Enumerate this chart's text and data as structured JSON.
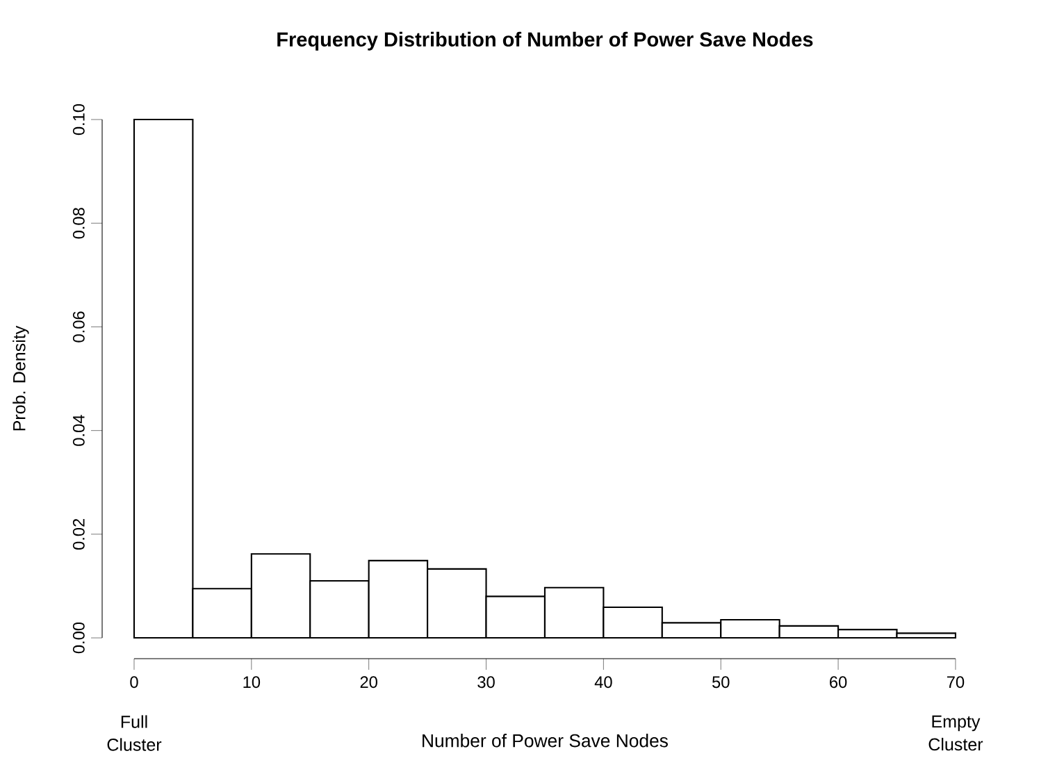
{
  "chart_data": {
    "type": "histogram",
    "title": "Frequency Distribution of Number of Power Save Nodes",
    "xlabel": "Number of Power Save Nodes",
    "ylabel": "Prob. Density",
    "bins": [
      0,
      5,
      10,
      15,
      20,
      25,
      30,
      35,
      40,
      45,
      50,
      55,
      60,
      65,
      70
    ],
    "values": [
      0.1,
      0.0095,
      0.0162,
      0.011,
      0.0149,
      0.0133,
      0.008,
      0.0097,
      0.0059,
      0.0029,
      0.0035,
      0.0023,
      0.0016,
      0.0009
    ],
    "color": "#ffffff",
    "xlim": [
      0,
      70
    ],
    "xticks": [
      0,
      10,
      20,
      30,
      40,
      50,
      60,
      70
    ],
    "ylim": [
      0,
      0.1
    ],
    "yticks": [
      {
        "value": 0,
        "label": "0.00"
      },
      {
        "value": 0.02,
        "label": "0.02"
      },
      {
        "value": 0.04,
        "label": "0.04"
      },
      {
        "value": 0.06,
        "label": "0.06"
      },
      {
        "value": 0.08,
        "label": "0.08"
      },
      {
        "value": 0.1,
        "label": "0.10"
      }
    ],
    "annotations": [
      "Full Cluster",
      "Empty Cluster"
    ]
  }
}
